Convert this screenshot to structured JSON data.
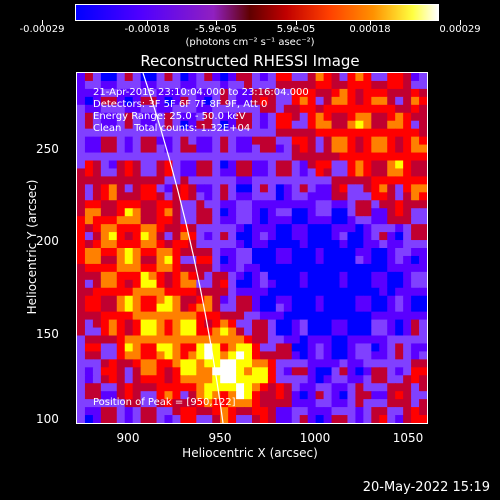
{
  "colorbar": {
    "tick_labels": [
      "-0.00029",
      "-0.00018",
      "-5.9e-05",
      "5.9e-05",
      "0.00018",
      "0.00029"
    ],
    "units": "(photons cm⁻² s⁻¹ asec⁻²)",
    "range": [
      -0.00029,
      0.00029
    ]
  },
  "title": "Reconstructed RHESSI Image",
  "annotations": {
    "time_range": "21-Apr-2015 23:10:04.000 to 23:16:04.000",
    "detectors": "Detectors: 3F 5F 6F 7F 8F 9F, Att 0",
    "energy": "Energy Range: 25.0 - 50.0 keV",
    "clean": "Clean    Total counts: 1.32E+04",
    "peak": "Position of Peak = [950,122]"
  },
  "axes": {
    "xlabel": "Heliocentric X (arcsec)",
    "ylabel": "Heliocentric Y (arcsec)",
    "xticks": [
      "900",
      "950",
      "1000",
      "1050"
    ],
    "yticks": [
      "250",
      "200",
      "150",
      "100"
    ],
    "xlim": [
      869,
      1063
    ],
    "ylim": [
      98,
      290
    ]
  },
  "timestamp": "20-May-2022 15:19",
  "palette": [
    "#0000ff",
    "#5a00ff",
    "#8040ff",
    "#c00030",
    "#ff0000",
    "#ff8000",
    "#ffff00",
    "#ffffff"
  ]
}
